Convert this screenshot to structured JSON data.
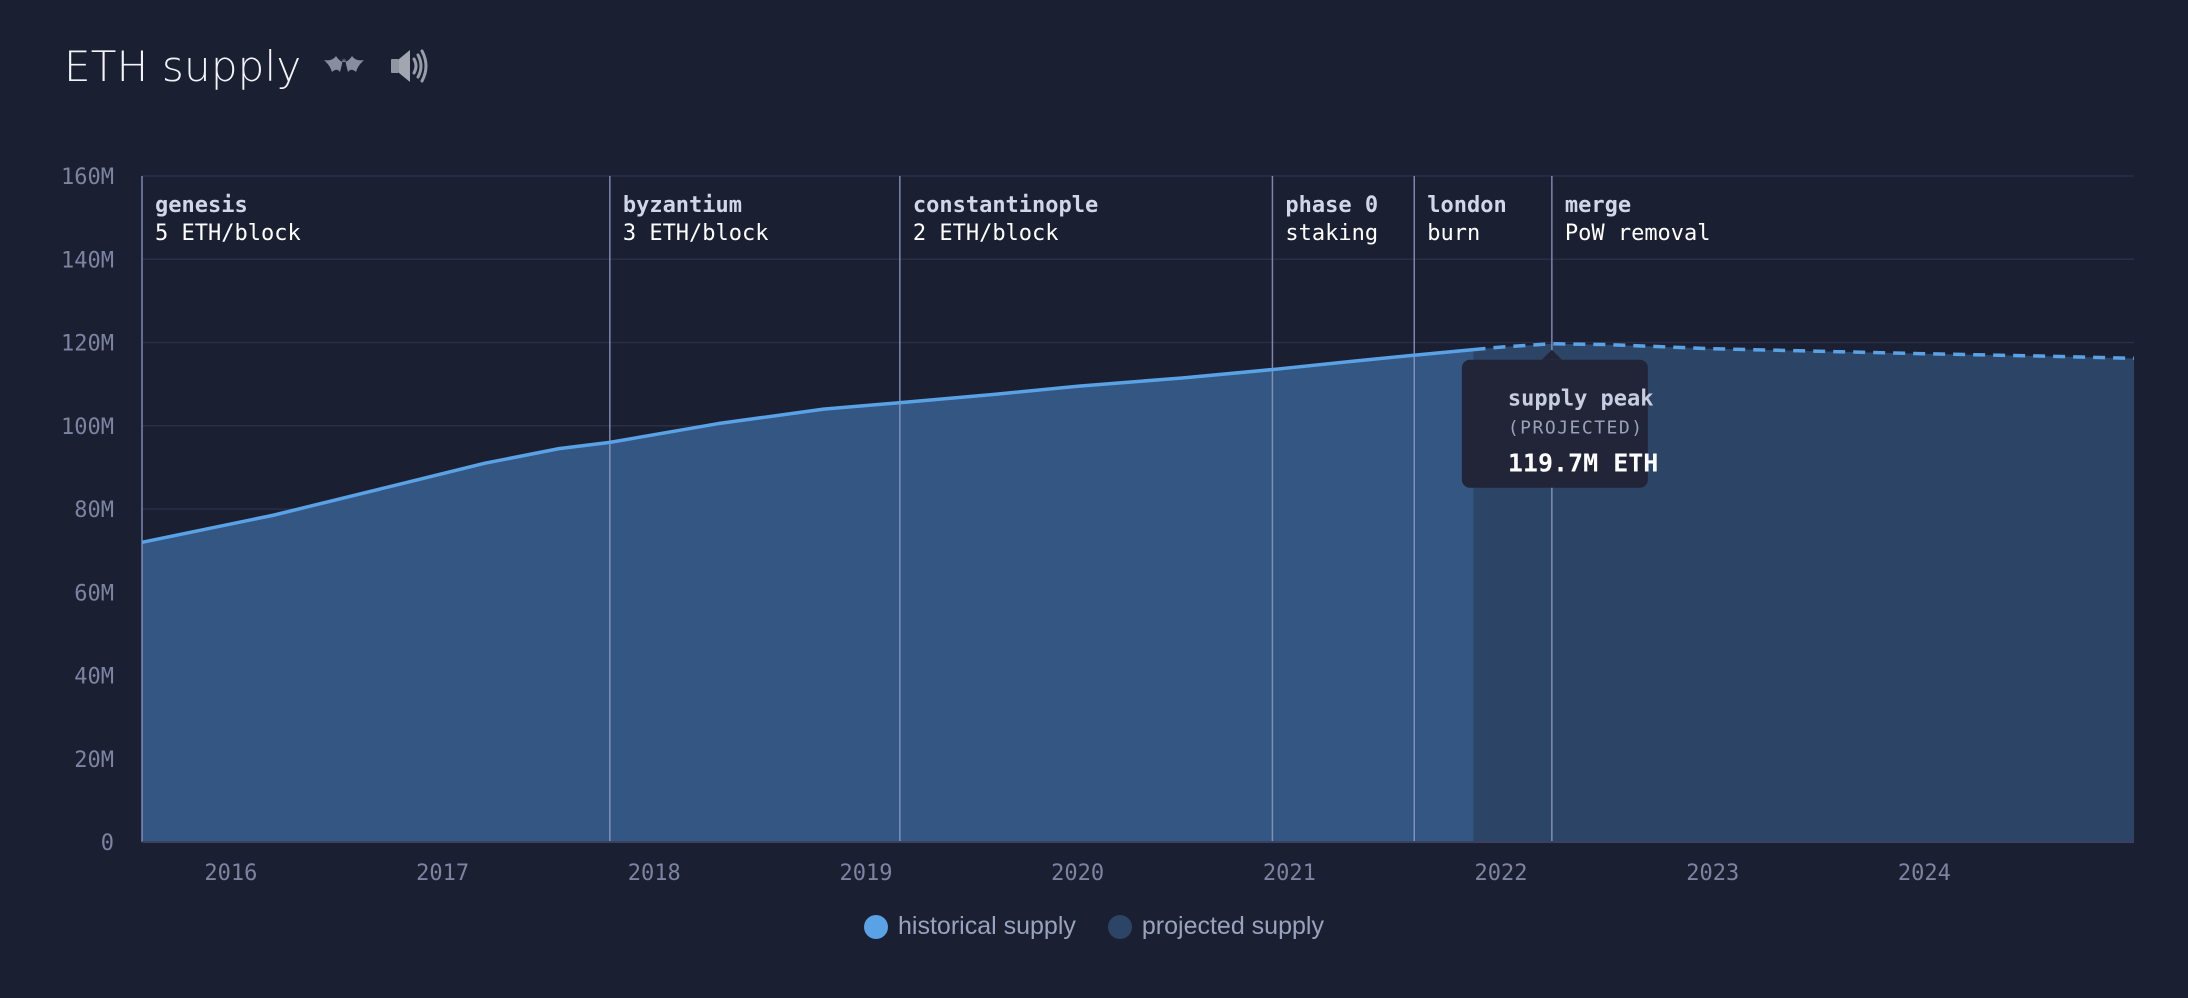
{
  "header": {
    "title": "ETH supply",
    "bat_icon": "bat-icon",
    "sound_icon": "speaker-icon"
  },
  "colors": {
    "historical_line": "#5aa2e6",
    "historical_fill": "#335682",
    "projected_fill": "#2c4466",
    "marker_line": "#8e98c4",
    "background": "#1b1f32",
    "tooltip_bg": "#222537"
  },
  "legend": {
    "historical": "historical supply",
    "projected": "projected supply"
  },
  "chart_data": {
    "type": "area",
    "xlim": [
      2015.58,
      2024.99
    ],
    "ylim": [
      0,
      160
    ],
    "y_unit": "M ETH",
    "y_ticks": [
      {
        "value": 0,
        "label": "0"
      },
      {
        "value": 20,
        "label": "20M"
      },
      {
        "value": 40,
        "label": "40M"
      },
      {
        "value": 60,
        "label": "60M"
      },
      {
        "value": 80,
        "label": "80M"
      },
      {
        "value": 100,
        "label": "100M"
      },
      {
        "value": 120,
        "label": "120M"
      },
      {
        "value": 140,
        "label": "140M"
      },
      {
        "value": 160,
        "label": "160M"
      }
    ],
    "x_ticks": [
      {
        "value": 2016,
        "label": "2016"
      },
      {
        "value": 2017,
        "label": "2017"
      },
      {
        "value": 2018,
        "label": "2018"
      },
      {
        "value": 2019,
        "label": "2019"
      },
      {
        "value": 2020,
        "label": "2020"
      },
      {
        "value": 2021,
        "label": "2021"
      },
      {
        "value": 2022,
        "label": "2022"
      },
      {
        "value": 2023,
        "label": "2023"
      },
      {
        "value": 2024,
        "label": "2024"
      }
    ],
    "series": [
      {
        "name": "historical supply",
        "style": "solid",
        "points": [
          [
            2015.58,
            72.0
          ],
          [
            2016.2,
            78.5
          ],
          [
            2016.8,
            86.0
          ],
          [
            2017.2,
            91.0
          ],
          [
            2017.55,
            94.5
          ],
          [
            2017.79,
            96.0
          ],
          [
            2018.3,
            100.5
          ],
          [
            2018.8,
            104.0
          ],
          [
            2019.15,
            105.5
          ],
          [
            2019.6,
            107.5
          ],
          [
            2020.0,
            109.5
          ],
          [
            2020.5,
            111.5
          ],
          [
            2020.92,
            113.5
          ],
          [
            2021.3,
            115.5
          ],
          [
            2021.6,
            117.0
          ],
          [
            2021.87,
            118.3
          ]
        ]
      },
      {
        "name": "projected supply",
        "style": "dashed",
        "points": [
          [
            2021.87,
            118.3
          ],
          [
            2022.0,
            118.9
          ],
          [
            2022.24,
            119.7
          ],
          [
            2022.5,
            119.5
          ],
          [
            2023.0,
            118.5
          ],
          [
            2023.5,
            117.9
          ],
          [
            2024.0,
            117.3
          ],
          [
            2024.5,
            116.8
          ],
          [
            2024.99,
            116.2
          ]
        ]
      }
    ],
    "projection_start": 2021.87,
    "markers": [
      {
        "x": 2015.58,
        "name": "genesis",
        "desc": "5 ETH/block"
      },
      {
        "x": 2017.79,
        "name": "byzantium",
        "desc": "3 ETH/block"
      },
      {
        "x": 2019.16,
        "name": "constantinople",
        "desc": "2 ETH/block"
      },
      {
        "x": 2020.92,
        "name": "phase 0",
        "desc": "staking"
      },
      {
        "x": 2021.59,
        "name": "london",
        "desc": "burn"
      },
      {
        "x": 2022.24,
        "name": "merge",
        "desc": "PoW removal"
      }
    ],
    "tooltip": {
      "x": 2022.24,
      "y": 119.7,
      "title": "supply peak",
      "subtitle": "(PROJECTED)",
      "value": "119.7M ETH"
    }
  }
}
